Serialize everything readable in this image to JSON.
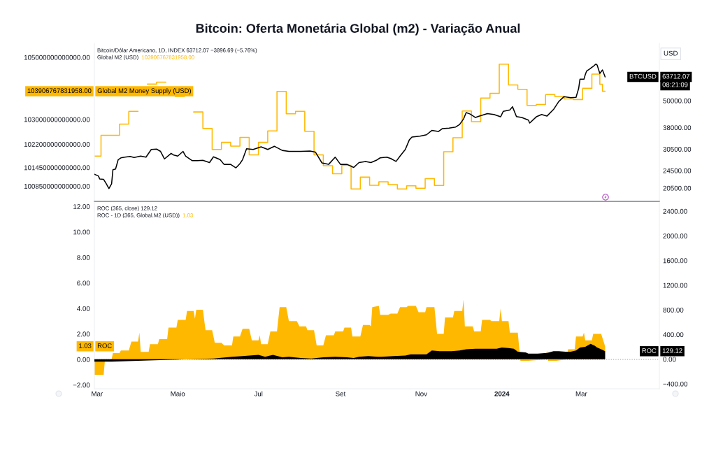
{
  "chart_data": [
    {
      "type": "line",
      "title": "Bitcoin: Oferta Monetária Global (m2) - Variação Anual",
      "y2label": "USD",
      "xlim": [
        "2023-02-27",
        "2024-04-29"
      ],
      "ylim": [
        100360000000000,
        105450000000000
      ],
      "yticks": [
        {
          "value": 100850000000000,
          "label": "100850000000000.00"
        },
        {
          "value": 101450000000000,
          "label": "101450000000000.00"
        },
        {
          "value": 102200000000000,
          "label": "102200000000000.00"
        },
        {
          "value": 103000000000000,
          "label": "103000000000000.00"
        },
        {
          "value": 105000000000000,
          "label": "105000000000000.00"
        }
      ],
      "y2lim": [
        17900,
        89700
      ],
      "y2ticks": [
        {
          "value": 20500,
          "label": "20500.00"
        },
        {
          "value": 24500,
          "label": "24500.00"
        },
        {
          "value": 30500,
          "label": "30500.00"
        },
        {
          "value": 38000,
          "label": "38000.00"
        },
        {
          "value": 50000,
          "label": "50000.00"
        }
      ],
      "log": "y2",
      "tick_labels": "y",
      "annotations": [
        "Bitcoin/Dólar Americano, 1D, INDEX 63712.07 −3896.69 (−5.76%)",
        "Global M2 (USD)",
        "103906767831958.00",
        "103906767831958.00",
        "63712.07",
        "08:21:09"
      ],
      "series": [
        {
          "type": "step",
          "name": "Global M2 Money Supply (USD)",
          "color": "#ffb800",
          "axis": "y",
          "x": [
            "2023-02-27",
            "2023-03-04",
            "2023-03-11",
            "2023-03-18",
            "2023-03-25",
            "2023-04-01",
            "2023-04-08",
            "2023-04-15",
            "2023-04-22",
            "2023-04-29",
            "2023-05-06",
            "2023-05-13",
            "2023-05-20",
            "2023-05-27",
            "2023-06-03",
            "2023-06-10",
            "2023-06-17",
            "2023-06-24",
            "2023-07-01",
            "2023-07-08",
            "2023-07-15",
            "2023-07-22",
            "2023-07-29",
            "2023-08-05",
            "2023-08-12",
            "2023-08-19",
            "2023-08-26",
            "2023-09-02",
            "2023-09-09",
            "2023-09-16",
            "2023-09-23",
            "2023-09-30",
            "2023-10-07",
            "2023-10-14",
            "2023-10-21",
            "2023-10-28",
            "2023-11-04",
            "2023-11-11",
            "2023-11-18",
            "2023-11-25",
            "2023-12-02",
            "2023-12-09",
            "2023-12-16",
            "2023-12-23",
            "2023-12-30",
            "2024-01-06",
            "2024-01-13",
            "2024-01-20",
            "2024-01-27",
            "2024-02-03",
            "2024-02-10",
            "2024-02-17",
            "2024-02-24",
            "2024-03-02",
            "2024-03-09",
            "2024-03-15",
            "2024-03-17",
            "2024-03-19"
          ],
          "values": [
            101820000000000,
            102490000000000,
            102490000000000,
            102850000000000,
            103260000000000,
            null,
            104140000000000,
            104200000000000,
            null,
            103740000000000,
            null,
            103240000000000,
            102710000000000,
            102030000000000,
            102260000000000,
            102140000000000,
            102420000000000,
            101860000000000,
            102260000000000,
            102630000000000,
            103900000000000,
            103180000000000,
            103260000000000,
            102620000000000,
            101860000000000,
            101510000000000,
            101250000000000,
            101520000000000,
            100760000000000,
            101140000000000,
            100880000000000,
            100990000000000,
            100900000000000,
            100760000000000,
            100860000000000,
            100780000000000,
            101090000000000,
            100870000000000,
            101960000000000,
            102410000000000,
            103270000000000,
            102930000000000,
            103690000000000,
            103840000000000,
            104780000000000,
            104110000000000,
            103970000000000,
            103450000000000,
            103480000000000,
            103800000000000,
            103740000000000,
            103660000000000,
            103640000000000,
            104000000000000,
            104460000000000,
            104130000000000,
            103906767831958,
            103906767831958
          ]
        },
        {
          "type": "line",
          "name": "BTCUSD",
          "color": "#000000",
          "axis": "y2",
          "x": [
            "2023-02-27",
            "2023-03-02",
            "2023-03-03",
            "2023-03-06",
            "2023-03-08",
            "2023-03-10",
            "2023-03-12",
            "2023-03-13",
            "2023-03-15",
            "2023-03-17",
            "2023-03-19",
            "2023-03-22",
            "2023-03-26",
            "2023-03-29",
            "2023-04-03",
            "2023-04-07",
            "2023-04-11",
            "2023-04-15",
            "2023-04-18",
            "2023-04-21",
            "2023-04-26",
            "2023-04-28",
            "2023-05-01",
            "2023-05-05",
            "2023-05-07",
            "2023-05-12",
            "2023-05-16",
            "2023-05-20",
            "2023-05-25",
            "2023-05-28",
            "2023-06-02",
            "2023-06-05",
            "2023-06-10",
            "2023-06-14",
            "2023-06-17",
            "2023-06-19",
            "2023-06-22",
            "2023-06-27",
            "2023-07-03",
            "2023-07-08",
            "2023-07-13",
            "2023-07-19",
            "2023-07-24",
            "2023-08-02",
            "2023-08-09",
            "2023-08-13",
            "2023-08-18",
            "2023-08-23",
            "2023-08-28",
            "2023-09-01",
            "2023-09-06",
            "2023-09-11",
            "2023-09-15",
            "2023-09-20",
            "2023-09-24",
            "2023-09-28",
            "2023-10-01",
            "2023-10-06",
            "2023-10-09",
            "2023-10-13",
            "2023-10-16",
            "2023-10-20",
            "2023-10-23",
            "2023-10-25",
            "2023-10-31",
            "2023-11-05",
            "2023-11-09",
            "2023-11-14",
            "2023-11-17",
            "2023-11-22",
            "2023-11-27",
            "2023-11-30",
            "2023-12-03",
            "2023-12-05",
            "2023-12-08",
            "2023-12-12",
            "2023-12-15",
            "2023-12-21",
            "2023-12-26",
            "2023-12-31",
            "2024-01-02",
            "2024-01-07",
            "2024-01-09",
            "2024-01-12",
            "2024-01-16",
            "2024-01-21",
            "2024-01-22",
            "2024-01-27",
            "2024-01-31",
            "2024-02-04",
            "2024-02-09",
            "2024-02-13",
            "2024-02-17",
            "2024-02-22",
            "2024-02-26",
            "2024-02-28",
            "2024-02-29",
            "2024-03-03",
            "2024-03-04",
            "2024-03-05",
            "2024-03-07",
            "2024-03-10",
            "2024-03-12",
            "2024-03-13",
            "2024-03-15",
            "2024-03-17",
            "2024-03-19"
          ],
          "values": [
            23600,
            23200,
            22500,
            22400,
            21400,
            20400,
            21400,
            24700,
            24900,
            27400,
            27900,
            28100,
            28300,
            28000,
            28400,
            28100,
            30400,
            30500,
            29800,
            27600,
            29200,
            28700,
            28400,
            29800,
            28400,
            27100,
            27100,
            27200,
            26600,
            28200,
            27400,
            26100,
            26100,
            25200,
            26300,
            27400,
            30600,
            30400,
            31200,
            30400,
            31400,
            30100,
            29800,
            29800,
            29900,
            29600,
            26500,
            26100,
            28100,
            26100,
            26100,
            25300,
            26600,
            26900,
            26600,
            27200,
            27900,
            28100,
            27700,
            26900,
            28400,
            30400,
            33500,
            34500,
            34800,
            35300,
            36900,
            36500,
            37600,
            37800,
            38200,
            39200,
            41500,
            44300,
            43600,
            42100,
            42700,
            43800,
            43400,
            42400,
            44800,
            45500,
            47000,
            42500,
            42100,
            41000,
            39800,
            42400,
            43400,
            42700,
            45700,
            49600,
            52100,
            51500,
            51700,
            56600,
            62200,
            62200,
            65200,
            67600,
            68800,
            70900,
            72600,
            71800,
            66000,
            68400,
            63712.07
          ]
        }
      ]
    },
    {
      "type": "area",
      "xlim": [
        "2023-02-27",
        "2024-04-29"
      ],
      "xticks": [
        {
          "value": "2023-03-01",
          "label": "Mar"
        },
        {
          "value": "2023-05-01",
          "label": "Maio"
        },
        {
          "value": "2023-07-01",
          "label": "Jul"
        },
        {
          "value": "2023-09-01",
          "label": "Set"
        },
        {
          "value": "2023-11-01",
          "label": "Nov"
        },
        {
          "value": "2024-01-01",
          "label": "2024"
        },
        {
          "value": "2024-03-01",
          "label": "Mar"
        }
      ],
      "ylim": [
        -2.3,
        12.4
      ],
      "yticks": [
        {
          "value": -2,
          "label": "−2.00"
        },
        {
          "value": 0,
          "label": "0.00"
        },
        {
          "value": 2,
          "label": "2.00"
        },
        {
          "value": 4,
          "label": "4.00"
        },
        {
          "value": 6,
          "label": "6.00"
        },
        {
          "value": 8,
          "label": "8.00"
        },
        {
          "value": 10,
          "label": "10.00"
        },
        {
          "value": 12,
          "label": "12.00"
        }
      ],
      "y2lim": [
        -480,
        2560
      ],
      "y2ticks": [
        {
          "value": -400,
          "label": "−400.00"
        },
        {
          "value": 0,
          "label": "0.00"
        },
        {
          "value": 400,
          "label": "400.00"
        },
        {
          "value": 800,
          "label": "800.00"
        },
        {
          "value": 1200,
          "label": "1200.00"
        },
        {
          "value": 1600,
          "label": "1600.00"
        },
        {
          "value": 2000,
          "label": "2000.00"
        },
        {
          "value": 2400,
          "label": "2400.00"
        }
      ],
      "ref_lines": [
        {
          "axis": "y",
          "value": 0,
          "line_style": "dotted",
          "color": "#b2b5be"
        }
      ],
      "annotations": [
        "ROC (365, close) 129.12",
        "ROC - 1D (365, Global.M2 (USD))",
        "1.03",
        "1.03",
        "129.12"
      ],
      "series": [
        {
          "name": "ROC",
          "color": "#ffb800",
          "axis": "y",
          "x": [
            "2023-02-27",
            "2023-03-06",
            "2023-03-07",
            "2023-03-12",
            "2023-03-13",
            "2023-03-18",
            "2023-03-19",
            "2023-03-25",
            "2023-03-27",
            "2023-04-01",
            "2023-04-02",
            "2023-04-03",
            "2023-04-09",
            "2023-04-10",
            "2023-04-16",
            "2023-04-17",
            "2023-04-23",
            "2023-04-24",
            "2023-04-30",
            "2023-05-01",
            "2023-05-07",
            "2023-05-08",
            "2023-05-13",
            "2023-05-14",
            "2023-05-15",
            "2023-05-20",
            "2023-05-22",
            "2023-05-27",
            "2023-05-29",
            "2023-06-03",
            "2023-06-05",
            "2023-06-11",
            "2023-06-12",
            "2023-06-17",
            "2023-06-19",
            "2023-06-24",
            "2023-06-26",
            "2023-07-01",
            "2023-07-02",
            "2023-07-03",
            "2023-07-08",
            "2023-07-10",
            "2023-07-15",
            "2023-07-17",
            "2023-07-22",
            "2023-07-24",
            "2023-07-30",
            "2023-08-01",
            "2023-08-06",
            "2023-08-07",
            "2023-08-12",
            "2023-08-14",
            "2023-08-19",
            "2023-08-21",
            "2023-08-27",
            "2023-08-28",
            "2023-09-03",
            "2023-09-04",
            "2023-09-09",
            "2023-09-10",
            "2023-09-16",
            "2023-09-18",
            "2023-09-23",
            "2023-09-24",
            "2023-09-25",
            "2023-09-30",
            "2023-10-01",
            "2023-10-07",
            "2023-10-09",
            "2023-10-14",
            "2023-10-16",
            "2023-10-21",
            "2023-10-22",
            "2023-10-28",
            "2023-10-30",
            "2023-11-04",
            "2023-11-05",
            "2023-11-11",
            "2023-11-13",
            "2023-11-18",
            "2023-11-19",
            "2023-11-25",
            "2023-11-26",
            "2023-12-02",
            "2023-12-03",
            "2023-12-04",
            "2023-12-10",
            "2023-12-11",
            "2023-12-16",
            "2023-12-17",
            "2023-12-23",
            "2023-12-24",
            "2023-12-30",
            "2023-12-31",
            "2024-01-01",
            "2024-01-06",
            "2024-01-07",
            "2024-01-13",
            "2024-01-15",
            "2024-01-21",
            "2024-02-03",
            "2024-02-04",
            "2024-02-05",
            "2024-02-11",
            "2024-02-19",
            "2024-02-20",
            "2024-02-25",
            "2024-02-26",
            "2024-03-02",
            "2024-03-03",
            "2024-03-04",
            "2024-03-09",
            "2024-03-10",
            "2024-03-16",
            "2024-03-19"
          ],
          "values": [
            -1.2,
            -1.2,
            0,
            0,
            0.5,
            0.5,
            0.7,
            0.7,
            1.4,
            1.4,
            2.1,
            0.6,
            0.6,
            1.2,
            1.2,
            1.6,
            1.6,
            2.5,
            2.5,
            3.1,
            3.1,
            3.8,
            3.8,
            3.2,
            3.9,
            3.9,
            2.3,
            2.3,
            1.3,
            1.3,
            1.1,
            1.1,
            1.8,
            1.8,
            2.4,
            2.4,
            1.5,
            1.5,
            1.9,
            1.2,
            1.2,
            2.2,
            2.2,
            4.1,
            4.1,
            3.0,
            3.0,
            2.6,
            2.6,
            2.3,
            2.3,
            1.1,
            1.1,
            1.9,
            1.9,
            2.2,
            2.2,
            2.5,
            2.5,
            1.8,
            1.8,
            2.7,
            2.7,
            2.6,
            4.1,
            4.2,
            3.5,
            3.5,
            3.6,
            3.6,
            4.1,
            4.1,
            4.2,
            4.2,
            3.7,
            3.7,
            4.1,
            4.1,
            2.0,
            2.0,
            3.3,
            3.3,
            3.8,
            3.8,
            4.7,
            2.6,
            2.6,
            2.2,
            2.2,
            3.1,
            3.1,
            3.0,
            3.0,
            4.0,
            3.0,
            3.0,
            2.1,
            2.1,
            -0.1,
            -0.1,
            0,
            0.7,
            -0.1,
            -0.1,
            0,
            0.8,
            0.8,
            1.8,
            1.8,
            2.1,
            1.5,
            1.5,
            2.0,
            2.0,
            1.03
          ]
        },
        {
          "name": "ROC",
          "color": "#000000",
          "axis": "y2",
          "x": [
            "2023-02-27",
            "2023-03-12",
            "2023-04-09",
            "2023-04-27",
            "2023-05-07",
            "2023-05-28",
            "2023-06-11",
            "2023-06-19",
            "2023-07-01",
            "2023-07-06",
            "2023-07-12",
            "2023-07-19",
            "2023-07-24",
            "2023-08-02",
            "2023-08-10",
            "2023-08-19",
            "2023-08-28",
            "2023-09-06",
            "2023-09-11",
            "2023-09-15",
            "2023-09-22",
            "2023-09-29",
            "2023-10-02",
            "2023-10-11",
            "2023-10-20",
            "2023-10-24",
            "2023-10-29",
            "2023-11-05",
            "2023-11-09",
            "2023-11-15",
            "2023-11-24",
            "2023-11-30",
            "2023-12-05",
            "2023-12-12",
            "2023-12-21",
            "2023-12-28",
            "2024-01-01",
            "2024-01-06",
            "2024-01-10",
            "2024-01-13",
            "2024-01-19",
            "2024-01-21",
            "2024-01-28",
            "2024-02-04",
            "2024-02-09",
            "2024-02-13",
            "2024-02-18",
            "2024-02-22",
            "2024-02-26",
            "2024-02-29",
            "2024-03-04",
            "2024-03-08",
            "2024-03-11",
            "2024-03-13",
            "2024-03-16",
            "2024-03-19"
          ],
          "values": [
            -40,
            -40,
            -20,
            -10,
            0,
            10,
            40,
            50,
            70,
            40,
            70,
            30,
            40,
            20,
            10,
            30,
            40,
            30,
            20,
            40,
            50,
            40,
            40,
            50,
            60,
            80,
            80,
            80,
            140,
            130,
            130,
            140,
            160,
            170,
            170,
            170,
            190,
            180,
            170,
            120,
            110,
            90,
            90,
            100,
            130,
            130,
            120,
            120,
            140,
            190,
            200,
            250,
            220,
            190,
            160,
            129.12
          ]
        }
      ]
    }
  ]
}
